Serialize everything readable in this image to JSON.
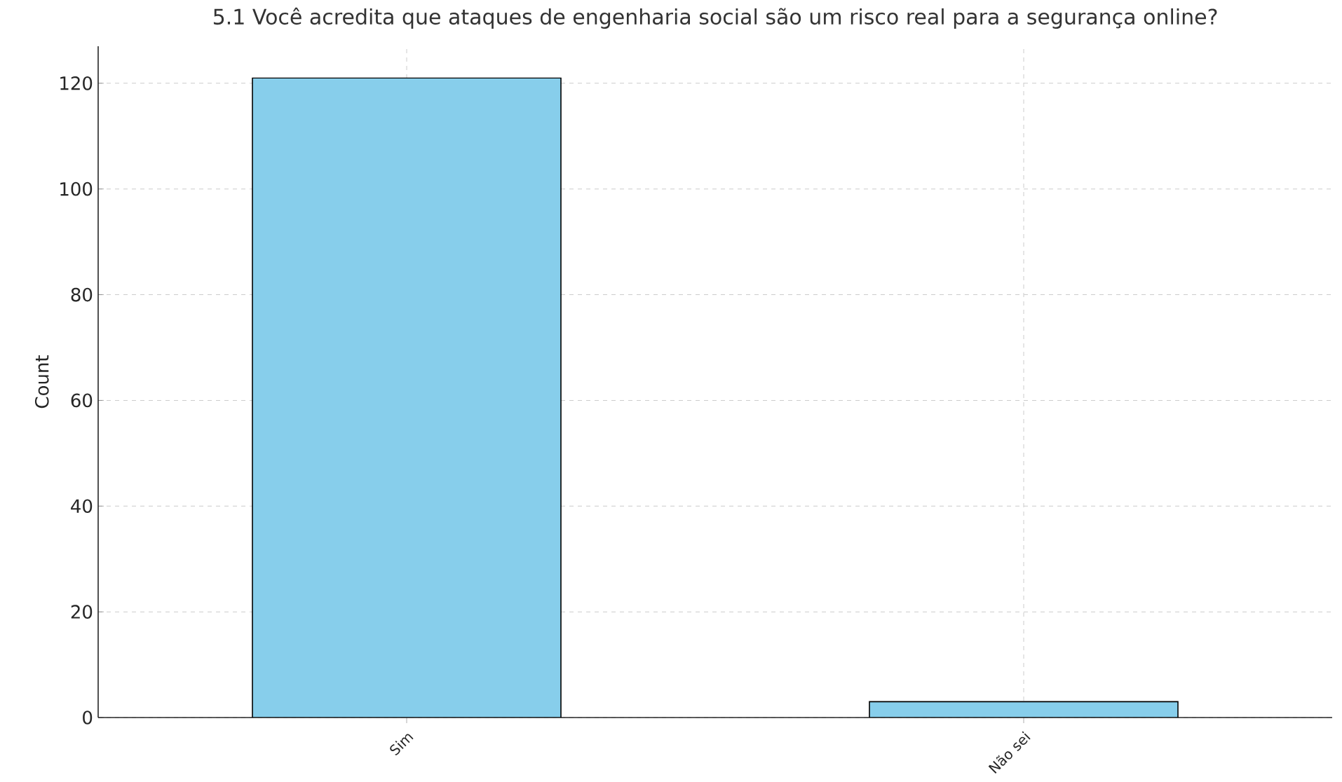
{
  "chart_data": {
    "type": "bar",
    "title": "5.1 Você acredita que ataques de engenharia social são um risco real para a segurança online?",
    "ylabel": "Count",
    "categories": [
      "Sim",
      "Não sei"
    ],
    "values": [
      121,
      3
    ],
    "color": "#87ceeb",
    "ylim": [
      0,
      127
    ],
    "yticks": [
      0,
      20,
      40,
      60,
      80,
      100,
      120
    ],
    "grid": true
  }
}
